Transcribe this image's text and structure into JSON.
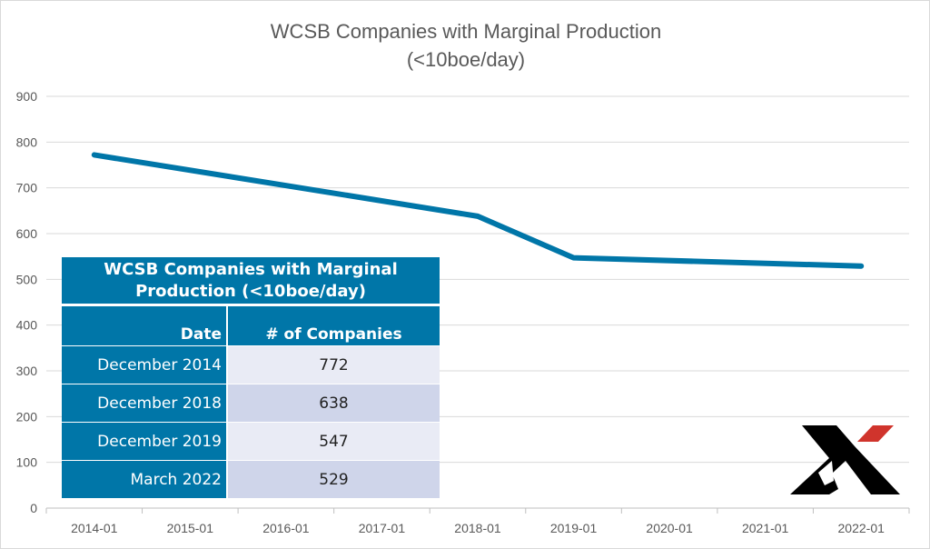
{
  "chart_data": {
    "type": "line",
    "title": "WCSB Companies with Marginal Production",
    "subtitle": "(<10boe/day)",
    "xlabel": "",
    "ylabel": "",
    "categories": [
      "2014-01",
      "2015-01",
      "2016-01",
      "2017-01",
      "2018-01",
      "2019-01",
      "2020-01",
      "2021-01",
      "2022-01"
    ],
    "ylim": [
      0,
      900
    ],
    "yticks": [
      0,
      100,
      200,
      300,
      400,
      500,
      600,
      700,
      800,
      900
    ],
    "grid": true,
    "legend": "none",
    "series": [
      {
        "color": "#0076a8",
        "points": [
          {
            "x": "2014-01",
            "y": 772
          },
          {
            "x": "2018-01",
            "y": 638
          },
          {
            "x": "2019-01",
            "y": 547
          },
          {
            "x": "2022-01",
            "y": 529
          }
        ]
      }
    ]
  },
  "table": {
    "title": "WCSB Companies with Marginal Production (<10boe/day)",
    "headers": [
      "Date",
      "# of Companies"
    ],
    "rows": [
      [
        "December 2014",
        "772"
      ],
      [
        "December 2018",
        "638"
      ],
      [
        "December 2019",
        "547"
      ],
      [
        "March 2022",
        "529"
      ]
    ],
    "header_color": "#0076a8"
  },
  "logo": {
    "text": "X",
    "colors": [
      "#000000",
      "#d0342c"
    ]
  }
}
